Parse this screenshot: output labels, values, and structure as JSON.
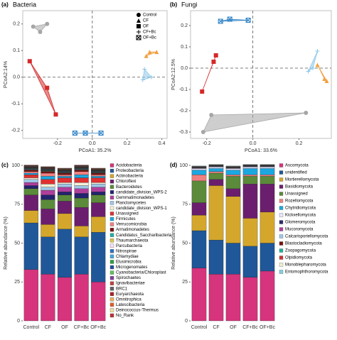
{
  "chart_data": [
    {
      "type": "scatter",
      "panel_label": "(a)",
      "title": "Bacteria",
      "x_label": "PCoA1: 35.2%",
      "y_label": "PCoA2:14%",
      "xlim": [
        -0.4,
        0.43
      ],
      "ylim": [
        -0.23,
        0.25
      ],
      "xticks": [
        -0.2,
        {
          "value": 0,
          "label": "0.0"
        },
        0.2,
        0.4
      ],
      "yticks": [
        -0.2,
        -0.1,
        {
          "value": 0,
          "label": "0.0"
        },
        0.1,
        0.2
      ],
      "zero_lines": true,
      "hulls": true,
      "legend": "top-right",
      "series": [
        {
          "name": "Control",
          "color": "#a6a6a6",
          "marker": "circle",
          "x": [
            -0.34,
            -0.3,
            -0.26
          ],
          "values": [
            0.19,
            0.17,
            0.2
          ]
        },
        {
          "name": "CF",
          "color": "#f0a040",
          "marker": "triangle",
          "x": [
            0.31,
            0.33,
            0.37
          ],
          "values": [
            0.08,
            0.095,
            0.095
          ]
        },
        {
          "name": "OF",
          "color": "#d42a2a",
          "marker": "square",
          "x": [
            -0.36,
            -0.26,
            -0.21
          ],
          "values": [
            0.06,
            -0.04,
            -0.14
          ]
        },
        {
          "name": "CF+Bc",
          "color": "#8ec8e8",
          "marker": "plus",
          "x": [
            0.29,
            0.3,
            0.34
          ],
          "values": [
            -0.01,
            0.03,
            0.0
          ]
        },
        {
          "name": "OF+Bc",
          "color": "#2a7fc4",
          "marker": "square-x",
          "x": [
            -0.1,
            -0.04,
            0.05
          ],
          "values": [
            -0.21,
            -0.21,
            -0.21
          ]
        }
      ]
    },
    {
      "type": "scatter",
      "panel_label": "(b)",
      "title": "Fungi",
      "x_label": "PCoA1: 33.6%",
      "y_label": "PCoA2:12.5%",
      "xlim": [
        -0.27,
        0.34
      ],
      "ylim": [
        -0.33,
        0.27
      ],
      "xticks": [
        -0.2,
        {
          "value": 0,
          "label": "0.0"
        },
        0.2
      ],
      "yticks": [
        -0.3,
        -0.2,
        -0.1,
        {
          "value": 0,
          "label": "0.0"
        },
        0.1,
        0.2
      ],
      "zero_lines": true,
      "hulls": true,
      "series": [
        {
          "name": "Control",
          "color": "#a6a6a6",
          "marker": "circle",
          "x": [
            -0.215,
            -0.18,
            0.23
          ],
          "values": [
            -0.3,
            -0.22,
            -0.21
          ]
        },
        {
          "name": "CF",
          "color": "#f0a040",
          "marker": "triangle",
          "x": [
            0.28,
            0.31,
            0.32
          ],
          "values": [
            0.015,
            -0.05,
            -0.06
          ]
        },
        {
          "name": "OF",
          "color": "#d42a2a",
          "marker": "square",
          "x": [
            -0.22,
            -0.17,
            -0.16
          ],
          "values": [
            -0.11,
            0.03,
            0.06
          ]
        },
        {
          "name": "CF+Bc",
          "color": "#8ec8e8",
          "marker": "plus",
          "x": [
            0.24,
            0.26,
            0.28
          ],
          "values": [
            -0.015,
            0.0,
            0.08
          ]
        },
        {
          "name": "OF+Bc",
          "color": "#2a7fc4",
          "marker": "square-x",
          "x": [
            -0.14,
            -0.1,
            -0.02
          ],
          "values": [
            0.22,
            0.23,
            0.225
          ]
        }
      ]
    },
    {
      "type": "stacked-bar",
      "panel_label": "(c)",
      "y_label": "Relative abundance (%)",
      "categories": [
        "Control",
        "CF",
        "OF",
        "CF+Bc",
        "OF+Bc"
      ],
      "ylim": [
        0,
        100
      ],
      "yticks": [
        0,
        25,
        50,
        75,
        100
      ],
      "series": [
        {
          "name": "Acidobacteria",
          "color": "#d6347d",
          "values": [
            33,
            30,
            28,
            30,
            25
          ]
        },
        {
          "name": "Proteobacteria",
          "color": "#1f5799",
          "values": [
            30,
            24,
            31,
            24,
            32
          ]
        },
        {
          "name": "Actinobacteria",
          "color": "#d4a72c",
          "values": [
            8,
            8,
            10,
            7,
            10
          ]
        },
        {
          "name": "Chloroflexi",
          "color": "#6b1e6e",
          "values": [
            10,
            10,
            8,
            12,
            9
          ]
        },
        {
          "name": "Bacteroidetes",
          "color": "#5b8a3a",
          "values": [
            4,
            6,
            4,
            6,
            5
          ]
        },
        {
          "name": "candidate_division_WPS-2",
          "color": "#23236e",
          "values": [
            2,
            3,
            2,
            3,
            2
          ]
        },
        {
          "name": "Gemmatimonadetes",
          "color": "#b03f9c",
          "values": [
            2,
            3,
            3,
            3,
            3
          ]
        },
        {
          "name": "Planctomycetes",
          "color": "#a0c8e8",
          "values": [
            2,
            2,
            2,
            2,
            2
          ]
        },
        {
          "name": "candidate_division_WPS-1",
          "color": "#f4f0d8",
          "values": [
            1,
            2,
            1,
            2,
            1
          ]
        },
        {
          "name": "Unassigned",
          "color": "#e03030",
          "values": [
            2,
            3,
            3,
            3,
            3
          ]
        },
        {
          "name": "Firmicutes",
          "color": "#1ba8e0",
          "values": [
            1,
            2,
            1,
            2,
            1
          ]
        },
        {
          "name": "Verrucomicrobia",
          "color": "#f08080",
          "values": [
            1,
            2,
            1,
            2,
            1
          ]
        },
        {
          "name": "Armatimonadetes",
          "color": "#7a1010",
          "values": [
            1,
            1,
            1,
            1,
            1
          ]
        },
        {
          "name": "Candidatus_Saccharibacteria",
          "color": "#20b0a0",
          "values": [
            0.2,
            0.2,
            0.2,
            0.2,
            0.2
          ]
        },
        {
          "name": "Thaumarchaeota",
          "color": "#e0c050",
          "values": [
            0.2,
            0.2,
            0.2,
            0.2,
            0.2
          ]
        },
        {
          "name": "Parcubacteria",
          "color": "#f8e0f0",
          "values": [
            0.2,
            0.2,
            0.2,
            0.2,
            0.2
          ]
        },
        {
          "name": "Nitrospirae",
          "color": "#3070c0",
          "values": [
            0.2,
            0.2,
            0.2,
            0.2,
            0.2
          ]
        },
        {
          "name": "Chlamydiae",
          "color": "#40a8d8",
          "values": [
            0.2,
            0.2,
            0.2,
            0.2,
            0.2
          ]
        },
        {
          "name": "Elusimicrobia",
          "color": "#30a040",
          "values": [
            0.2,
            0.2,
            0.2,
            0.2,
            0.2
          ]
        },
        {
          "name": "Microgenomates",
          "color": "#2050a0",
          "values": [
            0.2,
            0.2,
            0.2,
            0.2,
            0.2
          ]
        },
        {
          "name": "Cyanobacteria/Chloroplast",
          "color": "#60c060",
          "values": [
            0.2,
            0.2,
            0.2,
            0.2,
            0.2
          ]
        },
        {
          "name": "Spirochaetes",
          "color": "#8040a0",
          "values": [
            0.2,
            0.2,
            0.2,
            0.2,
            0.2
          ]
        },
        {
          "name": "Ignavibacteriae",
          "color": "#c04040",
          "values": [
            0.2,
            0.2,
            0.2,
            0.2,
            0.2
          ]
        },
        {
          "name": "BRC1",
          "color": "#606060",
          "values": [
            0.2,
            0.2,
            0.2,
            0.2,
            0.2
          ]
        },
        {
          "name": "Euryarchaeota",
          "color": "#b02020",
          "values": [
            0.2,
            0.2,
            0.2,
            0.2,
            0.2
          ]
        },
        {
          "name": "Omnitrophica",
          "color": "#f0b060",
          "values": [
            0.2,
            0.2,
            0.2,
            0.2,
            0.2
          ]
        },
        {
          "name": "Latescibacteria",
          "color": "#e06020",
          "values": [
            0.2,
            0.2,
            0.2,
            0.2,
            0.2
          ]
        },
        {
          "name": "Deinococcus-Thermus",
          "color": "#f0e0a0",
          "values": [
            0.2,
            0.2,
            0.2,
            0.2,
            0.2
          ]
        },
        {
          "name": "No_Rank",
          "color": "#c03030",
          "values": [
            0.2,
            0.2,
            0.2,
            0.2,
            0.2
          ]
        }
      ]
    },
    {
      "type": "stacked-bar",
      "panel_label": "(d)",
      "y_label": "Relative abundance (%)",
      "categories": [
        "Control",
        "CF",
        "OF",
        "CF+Bc",
        "OF+Bc"
      ],
      "ylim": [
        0,
        100
      ],
      "yticks": [
        0,
        25,
        50,
        75,
        100
      ],
      "series": [
        {
          "name": "Ascomycota",
          "color": "#d6347d",
          "values": [
            34,
            30,
            30,
            28,
            32
          ]
        },
        {
          "name": "unidentified",
          "color": "#1f5799",
          "values": [
            24,
            22,
            20,
            20,
            18
          ]
        },
        {
          "name": "Mortierellomycota",
          "color": "#d4a72c",
          "values": [
            10,
            35,
            30,
            18,
            20
          ]
        },
        {
          "name": "Basidiomycota",
          "color": "#6b1e6e",
          "values": [
            8,
            4,
            5,
            22,
            18
          ]
        },
        {
          "name": "Unassigned",
          "color": "#5b8a3a",
          "values": [
            14,
            4,
            8,
            5,
            5
          ]
        },
        {
          "name": "Rozellomycota",
          "color": "#f08080",
          "values": [
            4,
            1,
            1,
            1,
            1
          ]
        },
        {
          "name": "Chytridiomycota",
          "color": "#1ba8e0",
          "values": [
            3,
            2,
            3,
            4,
            4
          ]
        },
        {
          "name": "Kickxellomycota",
          "color": "#e8e8ff",
          "values": [
            1,
            1,
            1,
            1,
            1
          ]
        },
        {
          "name": "Glomeromycota",
          "color": "#2b2b6b",
          "values": [
            0.2,
            0.2,
            0.2,
            0.2,
            0.2
          ]
        },
        {
          "name": "Mucoromycota",
          "color": "#b03fa0",
          "values": [
            0.2,
            0.2,
            0.2,
            0.2,
            0.2
          ]
        },
        {
          "name": "Calcarisporiellomycota",
          "color": "#a0c8e8",
          "values": [
            0.2,
            0.2,
            0.2,
            0.2,
            0.2
          ]
        },
        {
          "name": "Blastocladiomycota",
          "color": "#7a1010",
          "values": [
            0.2,
            0.2,
            0.2,
            0.2,
            0.2
          ]
        },
        {
          "name": "Zoopagomycota",
          "color": "#20b0a0",
          "values": [
            0.2,
            0.2,
            0.2,
            0.2,
            0.2
          ]
        },
        {
          "name": "Olpidiomycota",
          "color": "#cc3333",
          "values": [
            0.2,
            0.2,
            0.2,
            0.2,
            0.2
          ]
        },
        {
          "name": "Monoblepharomycota",
          "color": "#f0f0d0",
          "values": [
            0.2,
            0.2,
            0.2,
            0.2,
            0.2
          ]
        },
        {
          "name": "Entomophthoromycota",
          "color": "#80d0e0",
          "values": [
            0.2,
            0.2,
            0.2,
            0.2,
            0.2
          ]
        }
      ]
    }
  ]
}
